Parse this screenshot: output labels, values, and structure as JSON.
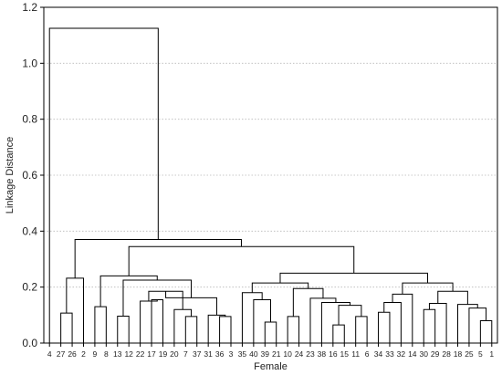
{
  "chart_data": {
    "type": "dendrogram",
    "title": "",
    "xlabel": "Female",
    "ylabel": "Linkage Distance",
    "ylim": [
      0,
      1.2
    ],
    "yticks": [
      0.0,
      0.2,
      0.4,
      0.6,
      0.8,
      1.0,
      1.2
    ],
    "ytick_labels": [
      "0.0",
      "0.2",
      "0.4",
      "0.6",
      "0.8",
      "1.0",
      "1.2"
    ],
    "grid": true,
    "legend": "none",
    "leaves": [
      "4",
      "27",
      "26",
      "2",
      "9",
      "8",
      "13",
      "12",
      "22",
      "17",
      "19",
      "20",
      "7",
      "37",
      "31",
      "36",
      "3",
      "35",
      "40",
      "39",
      "21",
      "10",
      "24",
      "23",
      "38",
      "16",
      "15",
      "11",
      "6",
      "34",
      "33",
      "32",
      "14",
      "30",
      "29",
      "28",
      "18",
      "25",
      "5",
      "1"
    ],
    "merges": [
      {
        "a": "L27",
        "b": "L26",
        "height": 0.107
      },
      {
        "a": "M0",
        "b": "L2",
        "height": 0.232
      },
      {
        "a": "L9",
        "b": "L8",
        "height": 0.13
      },
      {
        "a": "L13",
        "b": "L12",
        "height": 0.096
      },
      {
        "a": "L17",
        "b": "L19",
        "height": 0.155
      },
      {
        "a": "L22",
        "b": "M4",
        "height": 0.15
      },
      {
        "a": "L7",
        "b": "L37",
        "height": 0.095
      },
      {
        "a": "L20",
        "b": "M6",
        "height": 0.12
      },
      {
        "a": "M5",
        "b": "M7",
        "height": 0.185
      },
      {
        "a": "L36",
        "b": "L3",
        "height": 0.095
      },
      {
        "a": "L31",
        "b": "M9",
        "height": 0.1
      },
      {
        "a": "M8",
        "b": "M10",
        "height": 0.162
      },
      {
        "a": "M3",
        "b": "M11",
        "height": 0.225
      },
      {
        "a": "M2",
        "b": "M12",
        "height": 0.24
      },
      {
        "a": "L39",
        "b": "L21",
        "height": 0.075
      },
      {
        "a": "M14",
        "b": "L40",
        "height": 0.155
      },
      {
        "a": "L35",
        "b": "M15",
        "height": 0.18
      },
      {
        "a": "L10",
        "b": "L24",
        "height": 0.095
      },
      {
        "a": "L16",
        "b": "L15",
        "height": 0.065
      },
      {
        "a": "L11",
        "b": "L6",
        "height": 0.095
      },
      {
        "a": "M18",
        "b": "M19",
        "height": 0.135
      },
      {
        "a": "L38",
        "b": "M20",
        "height": 0.145
      },
      {
        "a": "L23",
        "b": "M21",
        "height": 0.16
      },
      {
        "a": "M17",
        "b": "M22",
        "height": 0.195
      },
      {
        "a": "M16",
        "b": "M23",
        "height": 0.215
      },
      {
        "a": "L34",
        "b": "L33",
        "height": 0.11
      },
      {
        "a": "M25",
        "b": "L32",
        "height": 0.145
      },
      {
        "a": "M26",
        "b": "L14",
        "height": 0.175
      },
      {
        "a": "L30",
        "b": "L29",
        "height": 0.12
      },
      {
        "a": "M28",
        "b": "L28",
        "height": 0.142
      },
      {
        "a": "L5",
        "b": "L1",
        "height": 0.08
      },
      {
        "a": "L25",
        "b": "M30",
        "height": 0.125
      },
      {
        "a": "L18",
        "b": "M31",
        "height": 0.138
      },
      {
        "a": "M29",
        "b": "M32",
        "height": 0.185
      },
      {
        "a": "M27",
        "b": "M33",
        "height": 0.215
      },
      {
        "a": "M24",
        "b": "M34",
        "height": 0.25
      },
      {
        "a": "M13",
        "b": "M35",
        "height": 0.345
      },
      {
        "a": "M1",
        "b": "M36",
        "height": 0.37
      },
      {
        "a": "L4",
        "b": "M37",
        "height": 1.125
      }
    ]
  }
}
